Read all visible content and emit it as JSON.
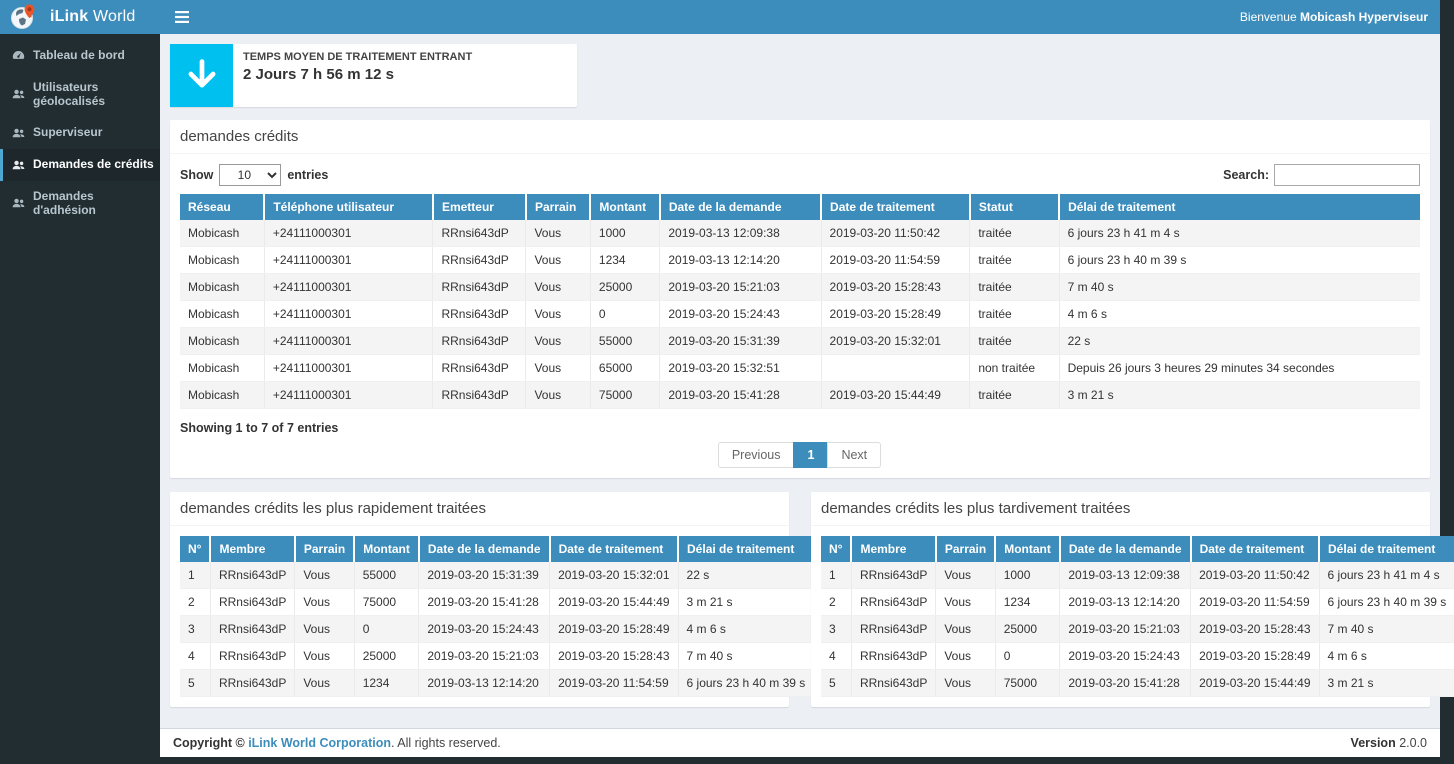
{
  "colors": {
    "accent": "#3c8dbc",
    "info_icon_bg": "#00c0ef",
    "sidebar_bg": "#222d32",
    "sidebar_active_border": "#4da7d0",
    "content_bg": "#ecf0f5",
    "stripe": "#f4f4f5"
  },
  "brand": {
    "name_bold": "iLink",
    "name_light": " World"
  },
  "navbar": {
    "welcome_prefix": "Bienvenue ",
    "welcome_user": "Mobicash Hyperviseur"
  },
  "sidebar": {
    "items": [
      {
        "label": "Tableau de bord",
        "icon": "dashboard-icon",
        "active": false
      },
      {
        "label": "Utilisateurs géolocalisés",
        "icon": "users-icon",
        "active": false
      },
      {
        "label": "Superviseur",
        "icon": "users-icon",
        "active": false
      },
      {
        "label": "Demandes de crédits",
        "icon": "users-icon",
        "active": true
      },
      {
        "label": "Demandes d'adhésion",
        "icon": "users-icon",
        "active": false
      }
    ]
  },
  "stat_card": {
    "label": "TEMPS MOYEN DE TRAITEMENT ENTRANT",
    "value": "2 Jours 7 h 56 m 12 s"
  },
  "credits_panel": {
    "title": "demandes crédits",
    "show_label": "Show",
    "page_length": "10",
    "entries_label": "entries",
    "search_label": "Search:",
    "search_value": "",
    "headers": [
      "Réseau",
      "Téléphone utilisateur",
      "Emetteur",
      "Parrain",
      "Montant",
      "Date de la demande",
      "Date de traitement",
      "Statut",
      "Délai de traitement"
    ],
    "rows": [
      [
        "Mobicash",
        "+24111000301",
        "RRnsi643dP",
        "Vous",
        "1000",
        "2019-03-13 12:09:38",
        "2019-03-20 11:50:42",
        "traitée",
        "6 jours 23 h 41 m 4 s"
      ],
      [
        "Mobicash",
        "+24111000301",
        "RRnsi643dP",
        "Vous",
        "1234",
        "2019-03-13 12:14:20",
        "2019-03-20 11:54:59",
        "traitée",
        "6 jours 23 h 40 m 39 s"
      ],
      [
        "Mobicash",
        "+24111000301",
        "RRnsi643dP",
        "Vous",
        "25000",
        "2019-03-20 15:21:03",
        "2019-03-20 15:28:43",
        "traitée",
        "7 m 40 s"
      ],
      [
        "Mobicash",
        "+24111000301",
        "RRnsi643dP",
        "Vous",
        "0",
        "2019-03-20 15:24:43",
        "2019-03-20 15:28:49",
        "traitée",
        "4 m 6 s"
      ],
      [
        "Mobicash",
        "+24111000301",
        "RRnsi643dP",
        "Vous",
        "55000",
        "2019-03-20 15:31:39",
        "2019-03-20 15:32:01",
        "traitée",
        "22 s"
      ],
      [
        "Mobicash",
        "+24111000301",
        "RRnsi643dP",
        "Vous",
        "65000",
        "2019-03-20 15:32:51",
        "",
        "non traitée",
        "Depuis 26 jours 3 heures 29 minutes 34 secondes"
      ],
      [
        "Mobicash",
        "+24111000301",
        "RRnsi643dP",
        "Vous",
        "75000",
        "2019-03-20 15:41:28",
        "2019-03-20 15:44:49",
        "traitée",
        "3 m 21 s"
      ]
    ],
    "info": "Showing 1 to 7 of 7 entries",
    "pagination": {
      "previous": "Previous",
      "page": "1",
      "next": "Next"
    }
  },
  "fastest_panel": {
    "title": "demandes crédits les plus rapidement traitées",
    "headers": [
      "N°",
      "Membre",
      "Parrain",
      "Montant",
      "Date de la demande",
      "Date de traitement",
      "Délai de traitement"
    ],
    "rows": [
      [
        "1",
        "RRnsi643dP",
        "Vous",
        "55000",
        "2019-03-20 15:31:39",
        "2019-03-20 15:32:01",
        "22 s"
      ],
      [
        "2",
        "RRnsi643dP",
        "Vous",
        "75000",
        "2019-03-20 15:41:28",
        "2019-03-20 15:44:49",
        "3 m 21 s"
      ],
      [
        "3",
        "RRnsi643dP",
        "Vous",
        "0",
        "2019-03-20 15:24:43",
        "2019-03-20 15:28:49",
        "4 m 6 s"
      ],
      [
        "4",
        "RRnsi643dP",
        "Vous",
        "25000",
        "2019-03-20 15:21:03",
        "2019-03-20 15:28:43",
        "7 m 40 s"
      ],
      [
        "5",
        "RRnsi643dP",
        "Vous",
        "1234",
        "2019-03-13 12:14:20",
        "2019-03-20 11:54:59",
        "6 jours 23 h 40 m 39 s"
      ]
    ]
  },
  "slowest_panel": {
    "title": "demandes crédits les plus tardivement traitées",
    "headers": [
      "N°",
      "Membre",
      "Parrain",
      "Montant",
      "Date de la demande",
      "Date de traitement",
      "Délai de traitement"
    ],
    "rows": [
      [
        "1",
        "RRnsi643dP",
        "Vous",
        "1000",
        "2019-03-13 12:09:38",
        "2019-03-20 11:50:42",
        "6 jours 23 h 41 m 4 s"
      ],
      [
        "2",
        "RRnsi643dP",
        "Vous",
        "1234",
        "2019-03-13 12:14:20",
        "2019-03-20 11:54:59",
        "6 jours 23 h 40 m 39 s"
      ],
      [
        "3",
        "RRnsi643dP",
        "Vous",
        "25000",
        "2019-03-20 15:21:03",
        "2019-03-20 15:28:43",
        "7 m 40 s"
      ],
      [
        "4",
        "RRnsi643dP",
        "Vous",
        "0",
        "2019-03-20 15:24:43",
        "2019-03-20 15:28:49",
        "4 m 6 s"
      ],
      [
        "5",
        "RRnsi643dP",
        "Vous",
        "75000",
        "2019-03-20 15:41:28",
        "2019-03-20 15:44:49",
        "3 m 21 s"
      ]
    ]
  },
  "footer": {
    "copyright_prefix": "Copyright © ",
    "company": "iLink World Corporation",
    "copyright_suffix": ". All rights reserved.",
    "version_label": "Version ",
    "version_value": "2.0.0"
  }
}
